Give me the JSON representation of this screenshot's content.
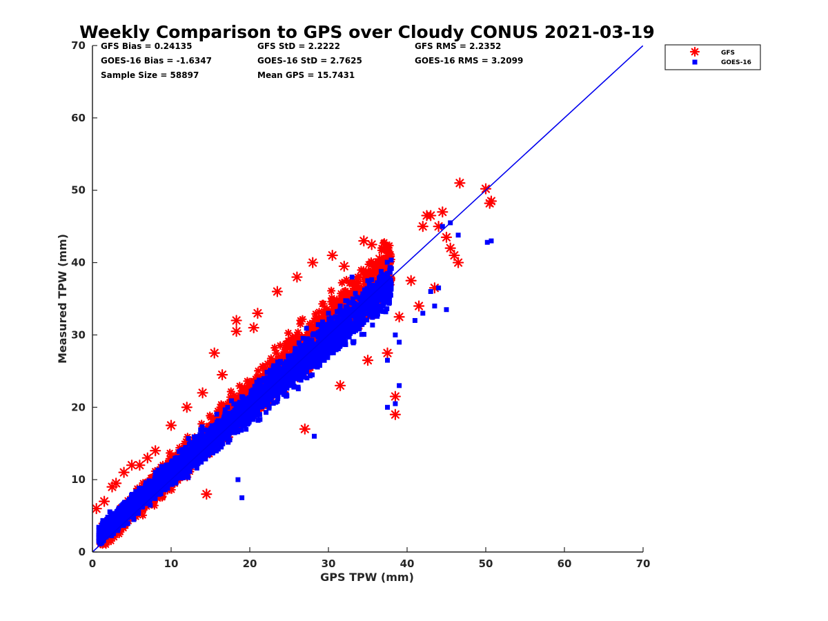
{
  "chart_data": {
    "type": "scatter",
    "title": "Weekly Comparison to GPS over Cloudy CONUS 2021-03-19",
    "xlabel": "GPS TPW (mm)",
    "ylabel": "Measured TPW (mm)",
    "xlim": [
      0,
      70
    ],
    "ylim": [
      0,
      70
    ],
    "xticks": [
      "0",
      "10",
      "20",
      "30",
      "40",
      "50",
      "60",
      "70"
    ],
    "yticks": [
      "0",
      "10",
      "20",
      "30",
      "40",
      "50",
      "60",
      "70"
    ],
    "grid": false,
    "legend_position": "outside top-right",
    "stats": [
      [
        "GFS Bias = 0.24135",
        "GFS StD = 2.2222",
        "GFS RMS = 2.2352"
      ],
      [
        "GOES-16 Bias = -1.6347",
        "GOES-16 StD = 2.7625",
        "GOES-16 RMS = 3.2099"
      ],
      [
        "Sample Size = 58897",
        "Mean GPS = 15.7431",
        ""
      ]
    ],
    "reference_line": {
      "x": [
        0,
        70
      ],
      "y": [
        0,
        70
      ],
      "color": "#0000ee"
    },
    "series": [
      {
        "name": "GFS",
        "marker": "asterisk",
        "color": "#ff0000",
        "core": {
          "x_range": [
            1,
            38
          ],
          "slope": 1.02,
          "offset": 0.8,
          "spread": 3.2
        },
        "x": [
          0.5,
          1.5,
          2.5,
          3,
          4,
          5,
          6,
          7,
          8,
          10,
          12,
          14,
          15.5,
          16.5,
          18.3,
          18.3,
          20.5,
          21,
          23.5,
          26,
          28,
          30.5,
          32,
          34.5,
          35.5,
          36.5,
          37.5,
          38.5,
          38.5,
          40.5,
          42,
          42.5,
          43,
          44,
          44.5,
          45,
          45.5,
          46,
          46.5,
          46.7,
          50,
          50.5,
          50.7,
          14.5,
          27,
          31.5,
          35,
          39,
          41.5,
          43.5
        ],
        "y": [
          6,
          7,
          9,
          9.5,
          11,
          12,
          12,
          13,
          14,
          17.5,
          20,
          22,
          27.5,
          24.5,
          32,
          30.5,
          31,
          33,
          36,
          38,
          40,
          41,
          39.5,
          43,
          42.5,
          40.5,
          27.5,
          21.5,
          19,
          37.5,
          45,
          46.5,
          46.5,
          45,
          47,
          43.5,
          42,
          41,
          40,
          51,
          50.2,
          48.2,
          48.5,
          8,
          17,
          23,
          26.5,
          32.5,
          34,
          36.5
        ]
      },
      {
        "name": "GOES-16",
        "marker": "square",
        "color": "#0000ff",
        "core": {
          "x_range": [
            0.8,
            38
          ],
          "slope": 0.93,
          "offset": 1.6,
          "spread": 2.8
        },
        "x": [
          1,
          2,
          3,
          4,
          6,
          8,
          10,
          12,
          14,
          16,
          18,
          19,
          21,
          24,
          26.5,
          28,
          30,
          31.5,
          33,
          35,
          36.5,
          37.5,
          38.5,
          39,
          41,
          42,
          43.5,
          44.5,
          45.5,
          46.5,
          43,
          44,
          45,
          50.2,
          50.7,
          38.5,
          39,
          37.5,
          18.5,
          28.2
        ],
        "y": [
          2,
          3,
          4,
          5,
          7,
          9,
          11,
          13,
          15,
          17,
          19,
          7.5,
          21,
          24,
          28,
          30,
          33,
          34,
          38,
          37.5,
          36,
          20,
          20.5,
          23,
          32,
          33,
          34,
          45,
          45.5,
          43.8,
          36,
          36.5,
          33.5,
          42.8,
          43,
          30,
          29,
          26.5,
          10,
          16
        ]
      }
    ]
  }
}
